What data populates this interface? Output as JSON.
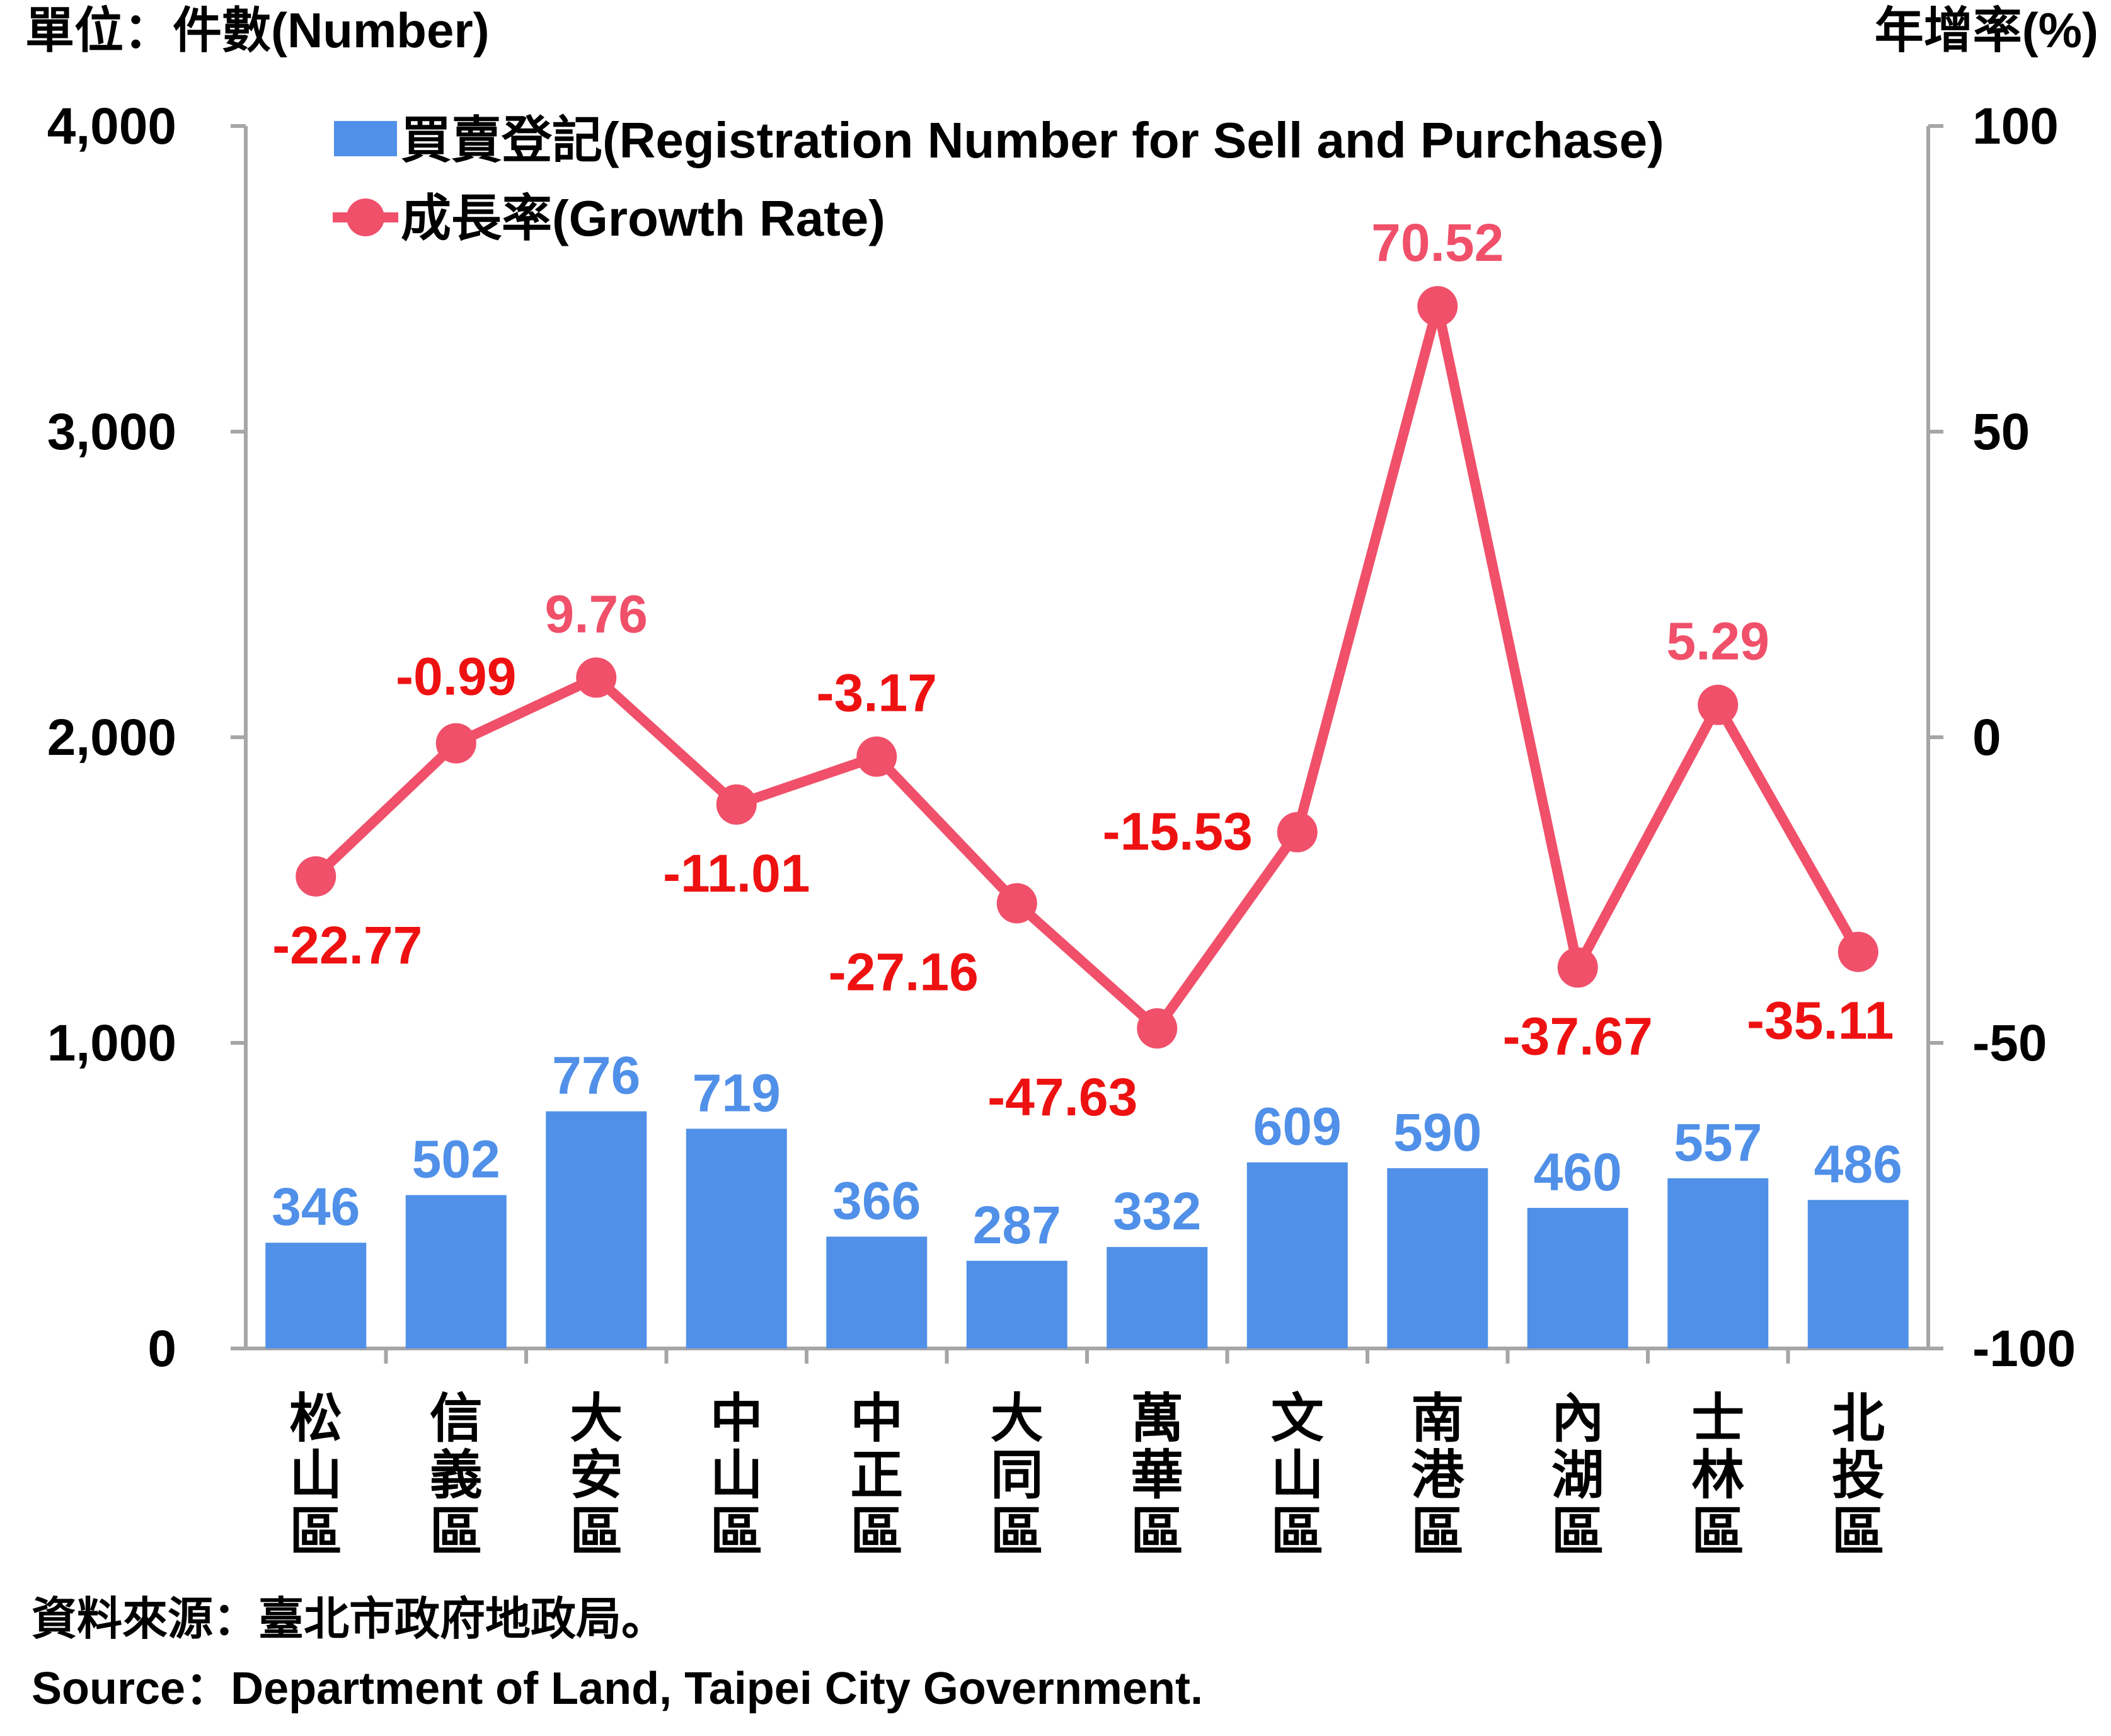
{
  "chart_data": {
    "type": "bar+line",
    "left_unit_label": "單位：件數(Number)",
    "right_unit_label": "年增率(%)",
    "categories": [
      "松山區",
      "信義區",
      "大安區",
      "中山區",
      "中正區",
      "大同區",
      "萬華區",
      "文山區",
      "南港區",
      "內湖區",
      "士林區",
      "北投區"
    ],
    "bar_series": {
      "name": "買賣登記(Registration Number for Sell and Purchase)",
      "values": [
        346,
        502,
        776,
        719,
        366,
        287,
        332,
        609,
        590,
        460,
        557,
        486
      ],
      "labels": [
        "346",
        "502",
        "776",
        "719",
        "366",
        "287",
        "332",
        "609",
        "590",
        "460",
        "557",
        "486"
      ],
      "color": "#5090E8"
    },
    "line_series": {
      "name": "成長率(Growth Rate)",
      "values": [
        -22.77,
        -0.99,
        9.76,
        -11.01,
        -3.17,
        -27.16,
        -47.63,
        -15.53,
        70.52,
        -37.67,
        5.29,
        -35.11
      ],
      "labels": [
        "-22.77",
        "-0.99",
        "9.76",
        "-11.01",
        "-3.17",
        "-27.16",
        "-47.63",
        "-15.53",
        "70.52",
        "-37.67",
        "5.29",
        "-35.11"
      ],
      "color": "#F0506A",
      "negative_label_color": "#EE1111"
    },
    "left_axis": {
      "ylim": [
        0,
        4000
      ],
      "ticks": [
        0,
        1000,
        2000,
        3000,
        4000
      ],
      "tick_labels": [
        "0",
        "1,000",
        "2,000",
        "3,000",
        "4,000"
      ]
    },
    "right_axis": {
      "ylim": [
        -100,
        100
      ],
      "ticks": [
        -100,
        -50,
        0,
        50,
        100
      ],
      "tick_labels": [
        "-100",
        "-50",
        "0",
        "50",
        "100"
      ]
    },
    "legend_position": "top-left",
    "grid": false
  },
  "source": {
    "zh": "資料來源：臺北市政府地政局。",
    "en": "Source：Department of Land, Taipei City Government."
  }
}
